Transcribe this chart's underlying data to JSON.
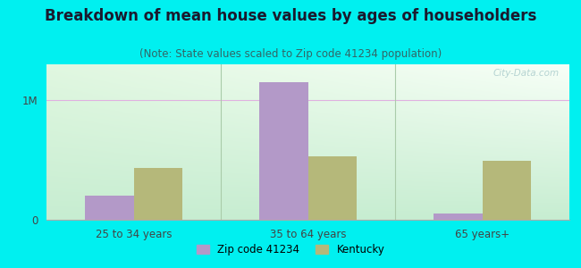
{
  "title": "Breakdown of mean house values by ages of householders",
  "subtitle": "(Note: State values scaled to Zip code 41234 population)",
  "categories": [
    "25 to 34 years",
    "35 to 64 years",
    "65 years+"
  ],
  "zip_values": [
    200000,
    1150000,
    55000
  ],
  "state_values": [
    430000,
    530000,
    490000
  ],
  "zip_color": "#b399c8",
  "state_color": "#b5b87a",
  "background_color": "#00f0f0",
  "title_fontsize": 12,
  "subtitle_fontsize": 8.5,
  "ytick_labels": [
    "0",
    "1M"
  ],
  "ytick_values": [
    0,
    1000000
  ],
  "ymax": 1300000,
  "legend_zip": "Zip code 41234",
  "legend_state": "Kentucky",
  "bar_width": 0.28
}
